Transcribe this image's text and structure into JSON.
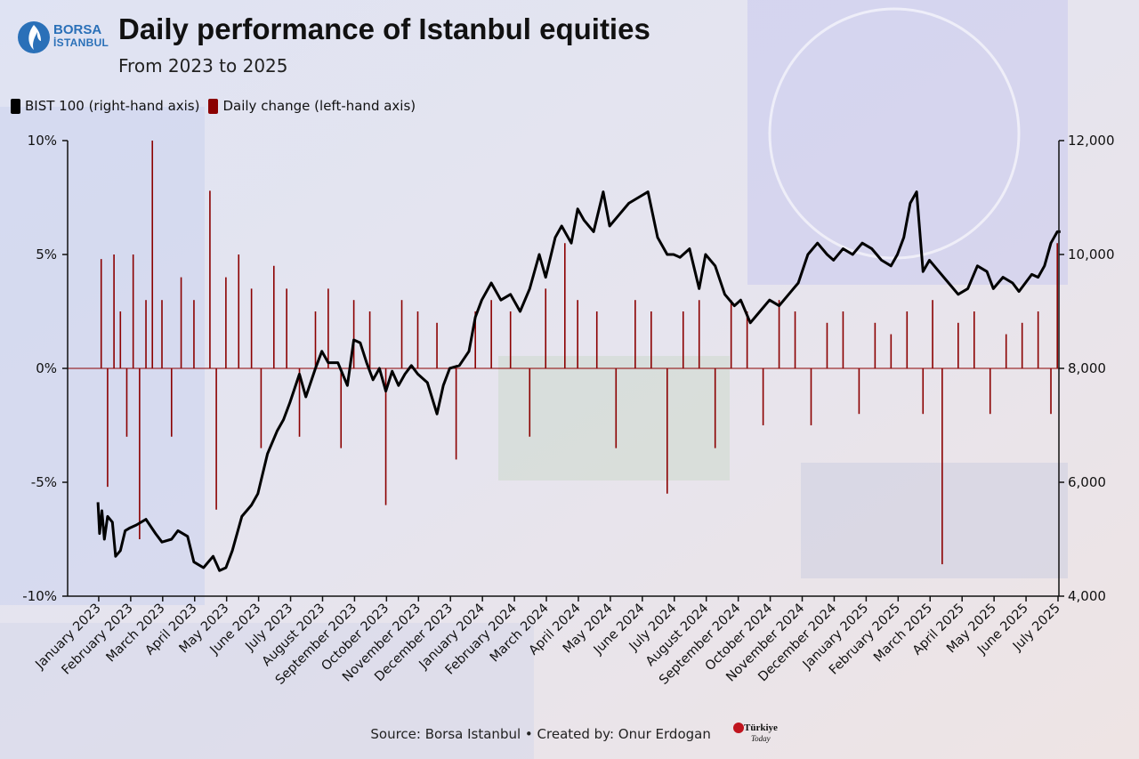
{
  "header": {
    "logo_line1": "BORSA",
    "logo_line2": "İSTANBUL",
    "title": "Daily performance of Istanbul equities",
    "subtitle": "From 2023 to 2025"
  },
  "legend": {
    "items": [
      {
        "label": "BIST 100 (right-hand axis)",
        "color": "#000000"
      },
      {
        "label": "Daily change (left-hand axis)",
        "color": "#8b0000"
      }
    ]
  },
  "footer": {
    "source": "Source: Borsa Istanbul • Created by: Onur Erdogan",
    "brand_line1": "Türkiye",
    "brand_line2": "Today"
  },
  "chart_data": {
    "type": "line",
    "left_axis": {
      "ticks": [
        "10%",
        "5%",
        "0%",
        "-5%",
        "-10%"
      ],
      "range": [
        -10,
        10
      ],
      "unit": "%"
    },
    "right_axis": {
      "ticks": [
        "12,000",
        "10,000",
        "8,000",
        "6,000",
        "4,000"
      ],
      "range": [
        4000,
        12000
      ]
    },
    "x_ticks": [
      "January 2023",
      "February 2023",
      "March 2023",
      "April 2023",
      "May 2023",
      "June 2023",
      "July 2023",
      "August 2023",
      "September 2023",
      "October 2023",
      "November 2023",
      "December 2023",
      "January 2024",
      "February 2024",
      "March 2024",
      "April 2024",
      "May 2024",
      "June 2024",
      "July 2024",
      "August 2024",
      "September 2024",
      "October 2024",
      "November 2024",
      "December 2024",
      "January 2025",
      "February 2025",
      "March 2025",
      "April 2025",
      "May 2025",
      "June 2025",
      "July 2025"
    ],
    "series": [
      {
        "name": "BIST 100 (right-hand axis)",
        "axis": "right",
        "color": "#000000",
        "month_fraction": [
          0,
          0.05,
          0.12,
          0.2,
          0.3,
          0.45,
          0.55,
          0.7,
          0.85,
          1.0,
          1.2,
          1.5,
          1.8,
          2.0,
          2.3,
          2.5,
          2.8,
          3.0,
          3.3,
          3.6,
          3.8,
          4.0,
          4.2,
          4.5,
          4.8,
          5.0,
          5.3,
          5.6,
          5.8,
          6.0,
          6.3,
          6.5,
          6.8,
          7.0,
          7.2,
          7.5,
          7.8,
          8.0,
          8.2,
          8.4,
          8.6,
          8.8,
          9.0,
          9.2,
          9.4,
          9.6,
          9.8,
          10.0,
          10.3,
          10.6,
          10.8,
          11.0,
          11.3,
          11.6,
          11.8,
          12.0,
          12.3,
          12.6,
          12.9,
          13.2,
          13.5,
          13.8,
          14.0,
          14.3,
          14.5,
          14.8,
          15.0,
          15.2,
          15.5,
          15.8,
          16.0,
          16.3,
          16.6,
          16.9,
          17.2,
          17.5,
          17.8,
          18.0,
          18.2,
          18.5,
          18.8,
          19.0,
          19.3,
          19.6,
          19.9,
          20.1,
          20.4,
          20.7,
          21.0,
          21.3,
          21.6,
          21.9,
          22.2,
          22.5,
          22.8,
          23.0,
          23.3,
          23.6,
          23.9,
          24.2,
          24.5,
          24.8,
          25.0,
          25.2,
          25.4,
          25.6,
          25.8,
          26.0,
          26.3,
          26.6,
          26.9,
          27.2,
          27.5,
          27.8,
          28.0,
          28.3,
          28.6,
          28.8,
          29.0,
          29.2,
          29.4,
          29.6,
          29.8,
          30.0,
          30.1
        ],
        "values": [
          5650,
          5100,
          5500,
          5000,
          5400,
          5300,
          4700,
          4800,
          5150,
          5200,
          5250,
          5350,
          5100,
          4950,
          5000,
          5150,
          5050,
          4600,
          4500,
          4700,
          4450,
          4500,
          4800,
          5400,
          5600,
          5800,
          6500,
          6900,
          7100,
          7400,
          7900,
          7500,
          8000,
          8300,
          8100,
          8100,
          7700,
          8500,
          8450,
          8100,
          7800,
          8000,
          7600,
          7950,
          7700,
          7900,
          8050,
          7900,
          7750,
          7200,
          7700,
          8000,
          8050,
          8300,
          8900,
          9200,
          9500,
          9200,
          9300,
          9000,
          9400,
          10000,
          9600,
          10300,
          10500,
          10200,
          10800,
          10600,
          10400,
          11100,
          10500,
          10700,
          10900,
          11000,
          11100,
          10300,
          10000,
          10000,
          9950,
          10100,
          9400,
          10000,
          9800,
          9300,
          9100,
          9200,
          8800,
          9000,
          9200,
          9100,
          9300,
          9500,
          10000,
          10200,
          10000,
          9900,
          10100,
          10000,
          10200,
          10100,
          9900,
          9800,
          10000,
          10300,
          10900,
          11100,
          9700,
          9900,
          9700,
          9500,
          9300,
          9400,
          9800,
          9700,
          9400,
          9600,
          9500,
          9350,
          9500,
          9650,
          9600,
          9800,
          10200,
          10400,
          10400
        ]
      },
      {
        "name": "Daily change (left-hand axis)",
        "axis": "left",
        "color": "#8b0000",
        "type": "bar",
        "month_fraction": [
          0.1,
          0.3,
          0.5,
          0.7,
          0.9,
          1.1,
          1.3,
          1.5,
          1.7,
          2.0,
          2.3,
          2.6,
          3.0,
          3.5,
          3.7,
          4.0,
          4.4,
          4.8,
          5.1,
          5.5,
          5.9,
          6.3,
          6.8,
          7.2,
          7.6,
          8.0,
          8.5,
          9.0,
          9.5,
          10.0,
          10.6,
          11.2,
          11.8,
          12.3,
          12.9,
          13.5,
          14.0,
          14.6,
          15.0,
          15.6,
          16.2,
          16.8,
          17.3,
          17.8,
          18.3,
          18.8,
          19.3,
          19.8,
          20.3,
          20.8,
          21.3,
          21.8,
          22.3,
          22.8,
          23.3,
          23.8,
          24.3,
          24.8,
          25.3,
          25.8,
          26.1,
          26.4,
          26.9,
          27.4,
          27.9,
          28.4,
          28.9,
          29.4,
          29.8,
          30.0
        ],
        "values": [
          4.8,
          -5.2,
          5.0,
          2.5,
          -3.0,
          5.0,
          -7.5,
          3.0,
          10.0,
          3.0,
          -3.0,
          4.0,
          3.0,
          7.8,
          -6.2,
          4.0,
          5.0,
          3.5,
          -3.5,
          4.5,
          3.5,
          -3.0,
          2.5,
          3.5,
          -3.5,
          3.0,
          2.5,
          -6.0,
          3.0,
          2.5,
          2.0,
          -4.0,
          2.5,
          3.0,
          2.5,
          -3.0,
          3.5,
          5.5,
          3.0,
          2.5,
          -3.5,
          3.0,
          2.5,
          -5.5,
          2.5,
          3.0,
          -3.5,
          3.0,
          2.5,
          -2.5,
          3.0,
          2.5,
          -2.5,
          2.0,
          2.5,
          -2.0,
          2.0,
          1.5,
          2.5,
          -2.0,
          3.0,
          -8.6,
          2.0,
          2.5,
          -2.0,
          1.5,
          2.0,
          2.5,
          -2.0,
          5.5
        ]
      }
    ]
  }
}
